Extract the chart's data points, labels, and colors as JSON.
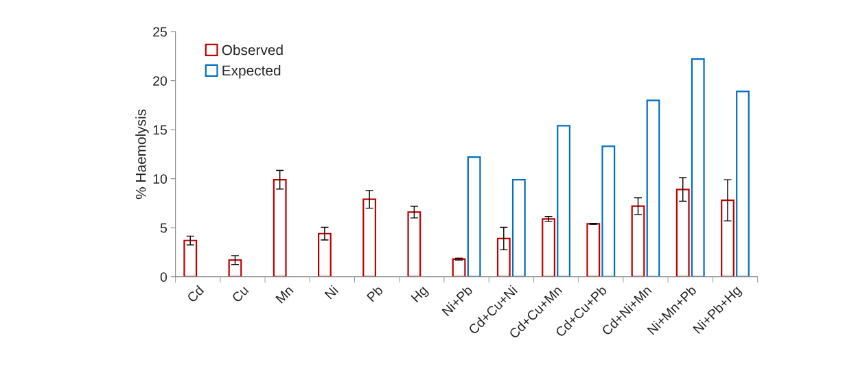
{
  "chart_data": {
    "type": "bar",
    "ylabel": "% Haemolysis",
    "categories": [
      "Cd",
      "Cu",
      "Mn",
      "Ni",
      "Pb",
      "Hg",
      "Ni+Pb",
      "Cd+Cu+Ni",
      "Cd+Cu+Mn",
      "Cd+Cu+Pb",
      "Cd+Ni+Mn",
      "Ni+Mn+Pb",
      "Ni+Pb+Hg"
    ],
    "series": [
      {
        "name": "Observed",
        "color": "#c00000",
        "values": [
          3.7,
          1.7,
          9.9,
          4.4,
          7.9,
          6.6,
          1.8,
          3.9,
          5.9,
          5.4,
          7.2,
          8.9,
          7.8
        ],
        "errors": [
          0.45,
          0.45,
          0.95,
          0.65,
          0.9,
          0.6,
          0.1,
          1.15,
          0.25,
          0.05,
          0.85,
          1.2,
          2.1
        ]
      },
      {
        "name": "Expected",
        "color": "#0070c0",
        "values": [
          null,
          null,
          null,
          null,
          null,
          null,
          12.2,
          9.9,
          15.4,
          13.3,
          18.0,
          22.2,
          18.9
        ]
      }
    ],
    "ylim": [
      0,
      25
    ],
    "yticks": [
      0,
      5,
      10,
      15,
      20,
      25
    ],
    "grid": false,
    "legend": "top left"
  }
}
